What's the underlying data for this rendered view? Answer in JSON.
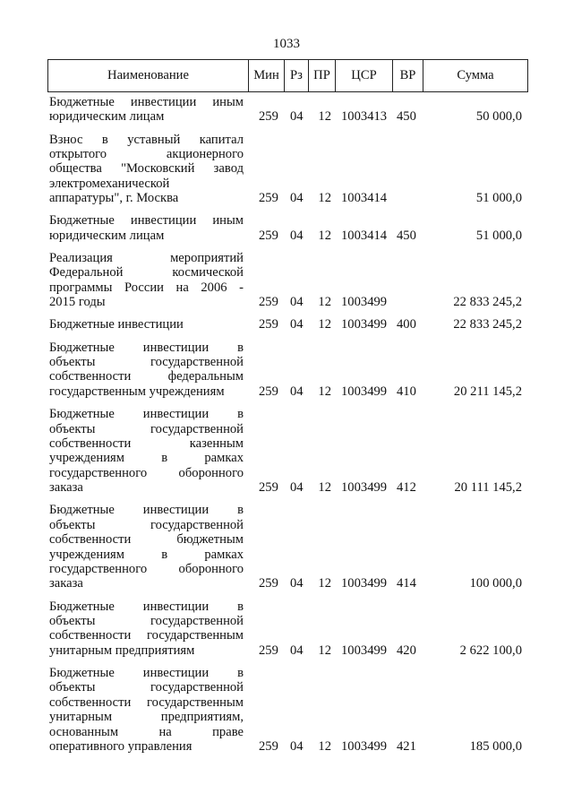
{
  "page_number": "1033",
  "table": {
    "headers": [
      "Наименование",
      "Мин",
      "Рз",
      "ПР",
      "ЦСР",
      "ВР",
      "Сумма"
    ],
    "rows": [
      {
        "name_lines": [
          "Бюджетные инвестиции иным",
          "юридическим лицам"
        ],
        "min": "259",
        "rz": "04",
        "pr": "12",
        "csr": "1003413",
        "vr": "450",
        "sum": "50 000,0"
      },
      {
        "name_lines": [
          "Взнос в уставный капитал",
          "открытого акционерного",
          "общества \"Московский завод",
          "электромеханической",
          "аппаратуры\", г. Москва"
        ],
        "min": "259",
        "rz": "04",
        "pr": "12",
        "csr": "1003414",
        "vr": "",
        "sum": "51 000,0"
      },
      {
        "name_lines": [
          "Бюджетные инвестиции иным",
          "юридическим лицам"
        ],
        "min": "259",
        "rz": "04",
        "pr": "12",
        "csr": "1003414",
        "vr": "450",
        "sum": "51 000,0"
      },
      {
        "name_lines": [
          "Реализация мероприятий",
          "Федеральной космической",
          "программы России на 2006 -",
          "2015 годы"
        ],
        "min": "259",
        "rz": "04",
        "pr": "12",
        "csr": "1003499",
        "vr": "",
        "sum": "22 833 245,2"
      },
      {
        "name_lines": [
          "Бюджетные инвестиции"
        ],
        "min": "259",
        "rz": "04",
        "pr": "12",
        "csr": "1003499",
        "vr": "400",
        "sum": "22 833 245,2"
      },
      {
        "name_lines": [
          "Бюджетные инвестиции в",
          "объекты государственной",
          "собственности федеральным",
          "государственным учреждениям"
        ],
        "min": "259",
        "rz": "04",
        "pr": "12",
        "csr": "1003499",
        "vr": "410",
        "sum": "20 211 145,2"
      },
      {
        "name_lines": [
          "Бюджетные инвестиции в",
          "объекты государственной",
          "собственности казенным",
          "учреждениям в рамках",
          "государственного оборонного",
          "заказа"
        ],
        "min": "259",
        "rz": "04",
        "pr": "12",
        "csr": "1003499",
        "vr": "412",
        "sum": "20 111 145,2"
      },
      {
        "name_lines": [
          "Бюджетные инвестиции в",
          "объекты государственной",
          "собственности бюджетным",
          "учреждениям в рамках",
          "государственного оборонного",
          "заказа"
        ],
        "min": "259",
        "rz": "04",
        "pr": "12",
        "csr": "1003499",
        "vr": "414",
        "sum": "100 000,0"
      },
      {
        "name_lines": [
          "Бюджетные инвестиции в",
          "объекты государственной",
          "собственности государственным",
          "унитарным предприятиям"
        ],
        "min": "259",
        "rz": "04",
        "pr": "12",
        "csr": "1003499",
        "vr": "420",
        "sum": "2 622 100,0"
      },
      {
        "name_lines": [
          "Бюджетные инвестиции в",
          "объекты государственной",
          "собственности государственным",
          "унитарным предприятиям,",
          "основанным на праве",
          "оперативного управления"
        ],
        "min": "259",
        "rz": "04",
        "pr": "12",
        "csr": "1003499",
        "vr": "421",
        "sum": "185 000,0"
      }
    ]
  }
}
